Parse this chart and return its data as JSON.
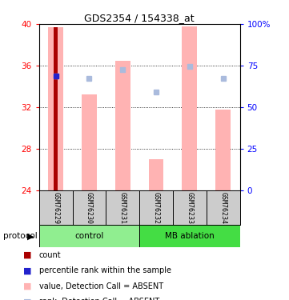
{
  "title": "GDS2354 / 154338_at",
  "samples": [
    "GSM76229",
    "GSM76230",
    "GSM76231",
    "GSM76232",
    "GSM76233",
    "GSM76234"
  ],
  "ylim_left": [
    24,
    40
  ],
  "ylim_right": [
    0,
    100
  ],
  "yticks_left": [
    24,
    28,
    32,
    36,
    40
  ],
  "ytick_labels_right": [
    "0",
    "25",
    "50",
    "75",
    "100%"
  ],
  "bar_values": [
    39.7,
    33.2,
    36.5,
    27.0,
    39.8,
    31.8
  ],
  "rank_dots": [
    35.0,
    34.8,
    35.6,
    33.5,
    35.9,
    34.8
  ],
  "count_bar_sample": 0,
  "count_bar_value": 39.7,
  "blue_dot_sample": 0,
  "blue_dot_value": 35.0,
  "bar_color": "#FFB3B3",
  "count_bar_color": "#AA0000",
  "blue_dot_color": "#2222CC",
  "rank_dot_color": "#AABBDD",
  "gray_bg": "#CCCCCC",
  "light_green": "#90EE90",
  "dark_green": "#44DD44",
  "legend_items": [
    {
      "label": "count",
      "color": "#AA0000"
    },
    {
      "label": "percentile rank within the sample",
      "color": "#2222CC"
    },
    {
      "label": "value, Detection Call = ABSENT",
      "color": "#FFB3B3"
    },
    {
      "label": "rank, Detection Call = ABSENT",
      "color": "#AABBDD"
    }
  ]
}
